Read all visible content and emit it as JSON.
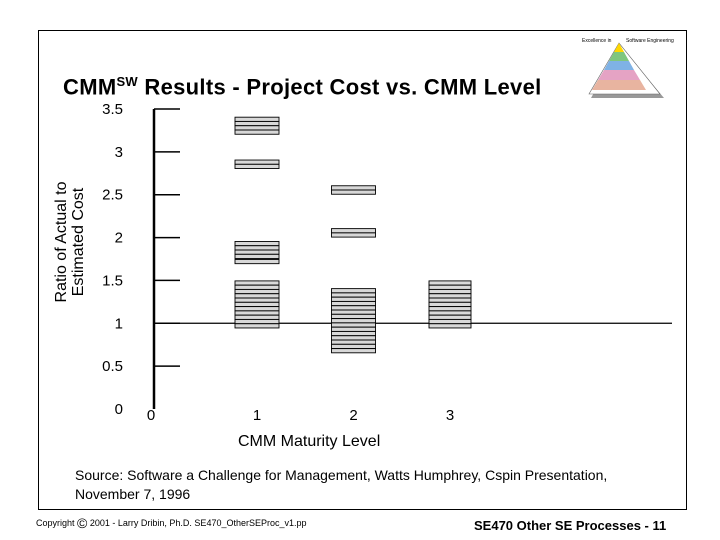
{
  "header": {
    "title_main": "CMM",
    "title_sup": "SW",
    "title_rest": " Results - Project Cost vs. CMM Level",
    "logo_left_text": "Excellence in",
    "logo_right_text": "Software Engineering"
  },
  "chart_data": {
    "type": "scatter",
    "title": "CMMSW Results - Project Cost vs. CMM Level",
    "xlabel": "CMM Maturity Level",
    "ylabel_line1": "Ratio of Actual to",
    "ylabel_line2": "Estimated Cost",
    "xlim": [
      0,
      3
    ],
    "ylim": [
      0,
      3.5
    ],
    "x_ticks": [
      "0",
      "1",
      "2",
      "3"
    ],
    "y_ticks": [
      "0",
      "0.5",
      "1",
      "1.5",
      "2",
      "2.5",
      "3",
      "3.5"
    ],
    "reference_line_y": 1.0,
    "series": [
      {
        "level": 1,
        "values": [
          3.38,
          3.33,
          3.28,
          3.23,
          2.88,
          2.83,
          1.93,
          1.88,
          1.83,
          1.78,
          1.72,
          1.47,
          1.42,
          1.37,
          1.32,
          1.27,
          1.22,
          1.17,
          1.12,
          1.07,
          1.02,
          0.97
        ]
      },
      {
        "level": 2,
        "values": [
          2.58,
          2.53,
          2.08,
          2.03,
          1.38,
          1.33,
          1.28,
          1.23,
          1.18,
          1.13,
          1.08,
          1.03,
          0.98,
          0.93,
          0.88,
          0.83,
          0.78,
          0.73,
          0.68
        ]
      },
      {
        "level": 3,
        "values": [
          1.47,
          1.42,
          1.37,
          1.32,
          1.27,
          1.22,
          1.17,
          1.12,
          1.07,
          1.02,
          0.97
        ]
      }
    ]
  },
  "footer": {
    "source": "Source: Software a Challenge for Management, Watts Humphrey, Cspin Presentation, November 7, 1996",
    "copyright_word": "Copyright",
    "copyright_symbol": "©",
    "copyright_text": "2001 - Larry Dribin, Ph.D. SE470_OtherSEProc_v1.pp",
    "course": "SE470 Other SE Processes -  11"
  }
}
